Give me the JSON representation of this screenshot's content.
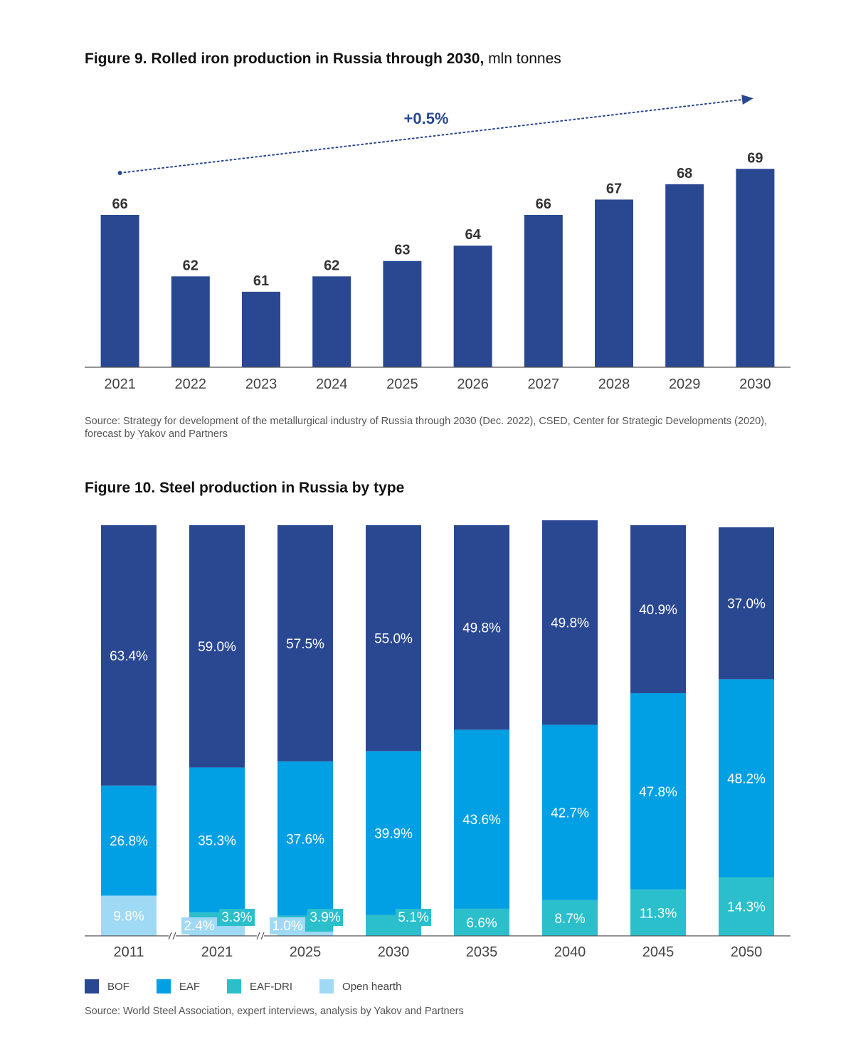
{
  "colors": {
    "bof": "#2a4891",
    "eaf": "#019fe3",
    "eaf_dri": "#2abfcb",
    "open_hearth": "#9fd9f4",
    "trend": "#2a4891",
    "axis": "#555555"
  },
  "figure9": {
    "title_bold": "Figure 9. Rolled iron production in Russia through 2030,",
    "title_unit": "mln tonnes",
    "trend_label": "+0.5%",
    "source": "Source: Strategy for development of the metallurgical industry of Russia through 2030 (Dec. 2022), CSED, Center for Strategic Developments (2020), forecast by Yakov and Partners"
  },
  "figure10": {
    "title": "Figure 10. Steel production in Russia by type",
    "legend": [
      {
        "key": "bof",
        "label": "BOF"
      },
      {
        "key": "eaf",
        "label": "EAF"
      },
      {
        "key": "eaf_dri",
        "label": "EAF-DRI"
      },
      {
        "key": "open_hearth",
        "label": "Open hearth"
      }
    ],
    "source": "Source: World Steel Association, expert interviews, analysis by Yakov and Partners"
  },
  "chart_data": [
    {
      "type": "bar",
      "title": "Figure 9. Rolled iron production in Russia through 2030, mln tonnes",
      "categories": [
        "2021",
        "2022",
        "2023",
        "2024",
        "2025",
        "2026",
        "2027",
        "2028",
        "2029",
        "2030"
      ],
      "values": [
        66,
        62,
        61,
        62,
        63,
        64,
        66,
        67,
        68,
        69
      ],
      "labels": [
        "66",
        "62",
        "61",
        "62",
        "63",
        "64",
        "66",
        "67",
        "68",
        "69"
      ],
      "annotation": "+0.5%",
      "xlabel": "",
      "ylabel": "mln tonnes"
    },
    {
      "type": "bar",
      "stacked": true,
      "title": "Figure 10. Steel production in Russia by type",
      "categories": [
        "2011",
        "2021",
        "2025",
        "2030",
        "2035",
        "2040",
        "2045",
        "2050"
      ],
      "axis_breaks_after": [
        "2011",
        "2021"
      ],
      "series": [
        {
          "name": "Open hearth",
          "key": "open_hearth",
          "values": [
            9.8,
            2.4,
            1.0,
            0,
            0,
            0,
            0,
            0
          ],
          "labels": [
            "9.8%",
            "2.4%",
            "1.0%",
            "",
            "",
            "",
            "",
            ""
          ]
        },
        {
          "name": "EAF-DRI",
          "key": "eaf_dri",
          "values": [
            0,
            3.3,
            3.9,
            5.1,
            6.6,
            8.7,
            11.3,
            14.3
          ],
          "labels": [
            "",
            "3.3%",
            "3.9%",
            "5.1%",
            "6.6%",
            "8.7%",
            "11.3%",
            "14.3%"
          ]
        },
        {
          "name": "EAF",
          "key": "eaf",
          "values": [
            26.8,
            35.3,
            37.6,
            39.9,
            43.6,
            42.7,
            47.8,
            48.2
          ],
          "labels": [
            "26.8%",
            "35.3%",
            "37.6%",
            "39.9%",
            "43.6%",
            "42.7%",
            "47.8%",
            "48.2%"
          ]
        },
        {
          "name": "BOF",
          "key": "bof",
          "values": [
            63.4,
            59.0,
            57.5,
            55.0,
            49.8,
            49.8,
            40.9,
            37.0
          ],
          "labels": [
            "63.4%",
            "59.0%",
            "57.5%",
            "55.0%",
            "49.8%",
            "49.8%",
            "40.9%",
            "37.0%"
          ]
        }
      ],
      "ylim": [
        0,
        100
      ]
    }
  ]
}
